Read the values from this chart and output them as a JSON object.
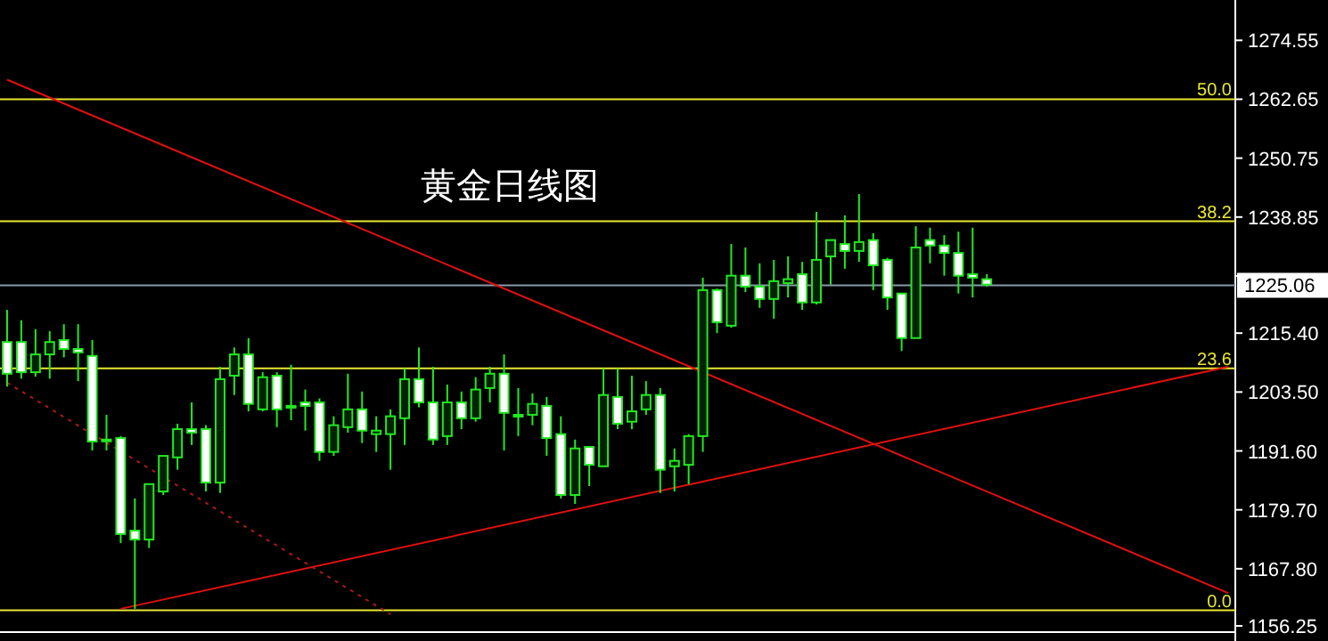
{
  "chart_data": {
    "type": "candlestick",
    "title": "黄金日线图",
    "categories": [
      null,
      null,
      null,
      null,
      null,
      null,
      null,
      null,
      null,
      null,
      null,
      null,
      null,
      null,
      null,
      null,
      null,
      null,
      null,
      null,
      null,
      null,
      null,
      null,
      null,
      null,
      null,
      null,
      null,
      null,
      null,
      null,
      null,
      null,
      null,
      null,
      null,
      null,
      null,
      null,
      null,
      null,
      null,
      null,
      null,
      null,
      null,
      null,
      null,
      null,
      null,
      null,
      null,
      null,
      null,
      null,
      null,
      null,
      null,
      null,
      null,
      null,
      null,
      null,
      null,
      null,
      null,
      null,
      null,
      null,
      null,
      null,
      null,
      null,
      null,
      null,
      null,
      null,
      null,
      null,
      null,
      null,
      null,
      null,
      null,
      null,
      null
    ],
    "ohlc": [
      [
        1213.6,
        1220.1,
        1204.6,
        1207.2
      ],
      [
        1213.6,
        1218.0,
        1206.2,
        1207.5
      ],
      [
        1207.5,
        1216.2,
        1206.6,
        1211.1
      ],
      [
        1211.1,
        1215.8,
        1206.2,
        1213.6
      ],
      [
        1214.0,
        1217.2,
        1210.5,
        1212.2
      ],
      [
        1212.2,
        1217.2,
        1205.7,
        1211.5
      ],
      [
        1210.8,
        1214.0,
        1191.7,
        1193.5
      ],
      [
        1193.9,
        1198.9,
        1191.7,
        1193.9
      ],
      [
        1194.2,
        1194.6,
        1173.0,
        1174.8
      ],
      [
        1175.5,
        1182.0,
        1159.7,
        1173.7
      ],
      [
        1173.7,
        1184.9,
        1172.0,
        1184.9
      ],
      [
        1183.4,
        1190.6,
        1182.7,
        1190.6
      ],
      [
        1190.3,
        1197.1,
        1187.8,
        1196.0
      ],
      [
        1196.0,
        1201.4,
        1192.8,
        1195.3
      ],
      [
        1196.0,
        1196.8,
        1183.4,
        1185.2
      ],
      [
        1185.2,
        1208.6,
        1183.1,
        1206.1
      ],
      [
        1206.8,
        1212.5,
        1202.9,
        1211.1
      ],
      [
        1211.1,
        1214.4,
        1199.6,
        1201.1
      ],
      [
        1200.0,
        1207.5,
        1199.6,
        1206.5
      ],
      [
        1206.8,
        1207.5,
        1196.4,
        1200.0
      ],
      [
        1200.7,
        1209.0,
        1197.8,
        1200.7
      ],
      [
        1201.4,
        1204.0,
        1195.7,
        1200.7
      ],
      [
        1201.4,
        1202.2,
        1189.6,
        1191.4
      ],
      [
        1191.4,
        1198.6,
        1190.6,
        1196.8
      ],
      [
        1196.4,
        1207.2,
        1195.3,
        1200.0
      ],
      [
        1200.0,
        1203.6,
        1193.2,
        1195.7
      ],
      [
        1195.0,
        1198.6,
        1191.4,
        1195.7
      ],
      [
        1195.0,
        1200.0,
        1187.8,
        1198.6
      ],
      [
        1198.2,
        1208.3,
        1192.8,
        1206.1
      ],
      [
        1206.1,
        1212.5,
        1200.4,
        1201.4
      ],
      [
        1201.4,
        1208.6,
        1192.8,
        1193.9
      ],
      [
        1194.6,
        1205.0,
        1192.8,
        1201.4
      ],
      [
        1201.4,
        1203.6,
        1196.0,
        1198.2
      ],
      [
        1198.2,
        1206.5,
        1197.5,
        1204.0
      ],
      [
        1204.3,
        1208.6,
        1201.4,
        1207.2
      ],
      [
        1207.2,
        1211.1,
        1191.7,
        1199.3
      ],
      [
        1198.9,
        1204.3,
        1194.6,
        1198.9
      ],
      [
        1198.9,
        1203.2,
        1196.8,
        1201.1
      ],
      [
        1200.7,
        1202.5,
        1190.6,
        1194.2
      ],
      [
        1195.0,
        1198.6,
        1182.0,
        1182.7
      ],
      [
        1182.7,
        1193.9,
        1180.9,
        1192.1
      ],
      [
        1192.4,
        1192.4,
        1184.5,
        1188.8
      ],
      [
        1188.5,
        1208.3,
        1188.5,
        1202.9
      ],
      [
        1202.5,
        1208.3,
        1196.0,
        1197.1
      ],
      [
        1197.5,
        1206.8,
        1196.0,
        1199.6
      ],
      [
        1200.0,
        1205.7,
        1198.9,
        1202.9
      ],
      [
        1202.9,
        1204.3,
        1183.1,
        1187.8
      ],
      [
        1188.5,
        1192.1,
        1183.4,
        1189.6
      ],
      [
        1188.8,
        1195.0,
        1184.9,
        1194.6
      ],
      [
        1194.6,
        1226.6,
        1191.4,
        1224.1
      ],
      [
        1224.1,
        1224.4,
        1215.4,
        1217.6
      ],
      [
        1216.9,
        1233.4,
        1216.5,
        1227.0
      ],
      [
        1227.0,
        1232.7,
        1223.7,
        1224.8
      ],
      [
        1224.8,
        1229.5,
        1220.5,
        1222.3
      ],
      [
        1222.3,
        1230.2,
        1218.3,
        1225.9
      ],
      [
        1225.5,
        1230.9,
        1222.6,
        1226.3
      ],
      [
        1227.3,
        1229.8,
        1220.1,
        1221.6
      ],
      [
        1221.6,
        1239.9,
        1221.2,
        1230.2
      ],
      [
        1230.9,
        1234.2,
        1225.2,
        1234.2
      ],
      [
        1233.4,
        1239.2,
        1228.4,
        1232.0
      ],
      [
        1232.0,
        1243.5,
        1229.8,
        1233.8
      ],
      [
        1234.2,
        1235.6,
        1224.1,
        1229.1
      ],
      [
        1230.2,
        1230.6,
        1220.1,
        1222.6
      ],
      [
        1223.4,
        1223.4,
        1211.8,
        1214.4
      ],
      [
        1214.4,
        1237.0,
        1214.4,
        1232.7
      ],
      [
        1234.2,
        1236.7,
        1229.5,
        1233.1
      ],
      [
        1233.1,
        1235.2,
        1227.0,
        1231.6
      ],
      [
        1231.6,
        1235.9,
        1223.4,
        1227.0
      ],
      [
        1227.3,
        1236.7,
        1222.6,
        1226.6
      ],
      [
        1226.3,
        1227.3,
        1224.8,
        1225.2
      ],
      null,
      null,
      null,
      null,
      null,
      null,
      null,
      null,
      null,
      null,
      null,
      null,
      null,
      null,
      null,
      null,
      null
    ],
    "series": [
      {
        "type": "line",
        "values": [
          1266.6,
          null,
          null,
          null,
          null,
          null,
          null,
          null,
          null,
          null,
          null,
          null,
          null,
          null,
          null,
          null,
          null,
          null,
          null,
          null,
          null,
          null,
          null,
          null,
          null,
          null,
          null,
          null,
          null,
          null,
          null,
          null,
          null,
          null,
          null,
          null,
          null,
          null,
          null,
          null,
          null,
          null,
          null,
          null,
          null,
          null,
          null,
          null,
          null,
          null,
          null,
          null,
          null,
          null,
          null,
          null,
          null,
          null,
          null,
          null,
          null,
          null,
          null,
          null,
          null,
          null,
          null,
          null,
          null,
          null,
          null,
          null,
          null,
          null,
          null,
          null,
          null,
          null,
          null,
          null,
          null,
          null,
          null,
          null,
          null,
          null,
          1162.9
        ],
        "color": "#e01010",
        "line_style": "solid"
      },
      {
        "type": "line",
        "values": [
          null,
          null,
          null,
          null,
          null,
          null,
          null,
          null,
          1159.7,
          null,
          null,
          null,
          null,
          null,
          null,
          null,
          null,
          null,
          null,
          null,
          null,
          null,
          null,
          null,
          null,
          null,
          null,
          null,
          null,
          null,
          null,
          null,
          null,
          null,
          null,
          null,
          null,
          null,
          null,
          null,
          null,
          null,
          null,
          null,
          null,
          null,
          null,
          null,
          null,
          null,
          null,
          null,
          null,
          null,
          null,
          null,
          null,
          null,
          null,
          null,
          null,
          null,
          null,
          null,
          null,
          null,
          null,
          null,
          null,
          null,
          null,
          null,
          null,
          null,
          null,
          null,
          null,
          null,
          null,
          null,
          null,
          null,
          null,
          null,
          null,
          null,
          1208.6
        ],
        "color": "#e01010",
        "line_style": "solid"
      },
      {
        "type": "line",
        "values": [
          1205.4,
          null,
          null,
          null,
          null,
          null,
          null,
          null,
          null,
          null,
          null,
          null,
          null,
          null,
          null,
          null,
          null,
          null,
          null,
          null,
          null,
          null,
          null,
          null,
          null,
          null,
          null,
          1158.6,
          null,
          null,
          null,
          null,
          null,
          null,
          null,
          null,
          null,
          null,
          null,
          null,
          null,
          null,
          null,
          null,
          null,
          null,
          null,
          null,
          null,
          null,
          null,
          null,
          null,
          null,
          null,
          null,
          null,
          null,
          null,
          null,
          null,
          null,
          null,
          null,
          null,
          null,
          null,
          null,
          null,
          null,
          null,
          null,
          null,
          null,
          null,
          null,
          null,
          null,
          null,
          null,
          null,
          null,
          null,
          null,
          null,
          null,
          null
        ],
        "color": "#b01818",
        "line_style": "dotted"
      }
    ],
    "ylim": [
      1155.0,
      1282.7
    ],
    "yticks": [
      {
        "value": 1274.55,
        "label": "1274.55"
      },
      {
        "value": 1262.65,
        "label": "1262.65"
      },
      {
        "value": 1250.75,
        "label": "1250.75"
      },
      {
        "value": 1238.85,
        "label": "1238.85"
      },
      {
        "value": 1226.95,
        "label": null
      },
      {
        "value": 1215.4,
        "label": "1215.40"
      },
      {
        "value": 1203.5,
        "label": "1203.50"
      },
      {
        "value": 1191.6,
        "label": "1191.60"
      },
      {
        "value": 1179.7,
        "label": "1179.70"
      },
      {
        "value": 1167.8,
        "label": "1167.80"
      },
      {
        "value": 1156.25,
        "label": "1156.25"
      }
    ],
    "tick_labels": "y",
    "annotations": [
      {
        "text": "50.0",
        "y": 1262.65
      },
      {
        "text": "38.2",
        "y": 1238.0
      },
      {
        "text": "23.6",
        "y": 1208.3
      },
      {
        "text": "0.0",
        "y": 1159.4
      }
    ],
    "ref_lines": [
      {
        "axis": "y",
        "value": 1262.65,
        "color": "#e8e830"
      },
      {
        "axis": "y",
        "value": 1238.0,
        "color": "#e8e830"
      },
      {
        "axis": "y",
        "value": 1208.3,
        "color": "#e8e830"
      },
      {
        "axis": "y",
        "value": 1159.4,
        "color": "#e8e830"
      },
      {
        "axis": "y",
        "value": 1225.06,
        "label": "1225.06",
        "color": "#8a9aaa"
      }
    ]
  }
}
